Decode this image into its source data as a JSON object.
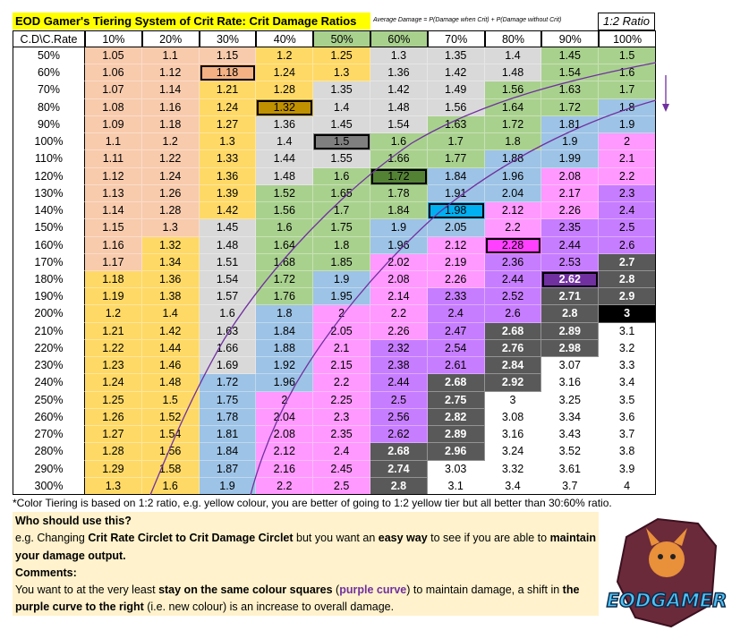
{
  "title": "EOD Gamer's Tiering System of Crit Rate: Crit Damage Ratios",
  "formula": "Average Damage = P(Damage when Crit) + P(Damage without Crit)",
  "ratio_label": "1:2 Ratio",
  "table": {
    "corner": "C.D\\C.Rate",
    "columns": [
      "10%",
      "20%",
      "30%",
      "40%",
      "50%",
      "60%",
      "70%",
      "80%",
      "90%",
      "100%"
    ],
    "column_colors": [
      "#ffffff",
      "#ffffff",
      "#ffffff",
      "#ffffff",
      "#a9d18e",
      "#a9d18e",
      "#ffffff",
      "#ffffff",
      "#ffffff",
      "#ffffff"
    ],
    "rows": [
      {
        "label": "50%",
        "cells": [
          "1.05",
          "1.1",
          "1.15",
          "1.2",
          "1.25",
          "1.3",
          "1.35",
          "1.4",
          "1.45",
          "1.5"
        ],
        "colors": [
          "#f8cbad",
          "#f8cbad",
          "#f8cbad",
          "#ffd966",
          "#ffd966",
          "#d9d9d9",
          "#d9d9d9",
          "#d9d9d9",
          "#a9d18e",
          "#a9d18e"
        ]
      },
      {
        "label": "60%",
        "cells": [
          "1.06",
          "1.12",
          "1.18",
          "1.24",
          "1.3",
          "1.36",
          "1.42",
          "1.48",
          "1.54",
          "1.6"
        ],
        "colors": [
          "#f8cbad",
          "#f8cbad",
          "#f4b183",
          "#ffd966",
          "#ffd966",
          "#d9d9d9",
          "#d9d9d9",
          "#d9d9d9",
          "#a9d18e",
          "#a9d18e"
        ]
      },
      {
        "label": "70%",
        "cells": [
          "1.07",
          "1.14",
          "1.21",
          "1.28",
          "1.35",
          "1.42",
          "1.49",
          "1.56",
          "1.63",
          "1.7"
        ],
        "colors": [
          "#f8cbad",
          "#f8cbad",
          "#ffd966",
          "#ffd966",
          "#d9d9d9",
          "#d9d9d9",
          "#d9d9d9",
          "#a9d18e",
          "#a9d18e",
          "#a9d18e"
        ]
      },
      {
        "label": "80%",
        "cells": [
          "1.08",
          "1.16",
          "1.24",
          "1.32",
          "1.4",
          "1.48",
          "1.56",
          "1.64",
          "1.72",
          "1.8"
        ],
        "colors": [
          "#f8cbad",
          "#f8cbad",
          "#ffd966",
          "#bf9000",
          "#d9d9d9",
          "#d9d9d9",
          "#d9d9d9",
          "#a9d18e",
          "#a9d18e",
          "#9dc3e6"
        ]
      },
      {
        "label": "90%",
        "cells": [
          "1.09",
          "1.18",
          "1.27",
          "1.36",
          "1.45",
          "1.54",
          "1.63",
          "1.72",
          "1.81",
          "1.9"
        ],
        "colors": [
          "#f8cbad",
          "#f8cbad",
          "#ffd966",
          "#d9d9d9",
          "#d9d9d9",
          "#d9d9d9",
          "#a9d18e",
          "#a9d18e",
          "#9dc3e6",
          "#9dc3e6"
        ]
      },
      {
        "label": "100%",
        "cells": [
          "1.1",
          "1.2",
          "1.3",
          "1.4",
          "1.5",
          "1.6",
          "1.7",
          "1.8",
          "1.9",
          "2"
        ],
        "colors": [
          "#f8cbad",
          "#f8cbad",
          "#ffd966",
          "#d9d9d9",
          "#7f7f7f",
          "#a9d18e",
          "#a9d18e",
          "#a9d18e",
          "#9dc3e6",
          "#ff99ff"
        ]
      },
      {
        "label": "110%",
        "cells": [
          "1.11",
          "1.22",
          "1.33",
          "1.44",
          "1.55",
          "1.66",
          "1.77",
          "1.88",
          "1.99",
          "2.1"
        ],
        "colors": [
          "#f8cbad",
          "#f8cbad",
          "#ffd966",
          "#d9d9d9",
          "#d9d9d9",
          "#a9d18e",
          "#a9d18e",
          "#9dc3e6",
          "#9dc3e6",
          "#ff99ff"
        ]
      },
      {
        "label": "120%",
        "cells": [
          "1.12",
          "1.24",
          "1.36",
          "1.48",
          "1.6",
          "1.72",
          "1.84",
          "1.96",
          "2.08",
          "2.2"
        ],
        "colors": [
          "#f8cbad",
          "#f8cbad",
          "#ffd966",
          "#d9d9d9",
          "#a9d18e",
          "#548235",
          "#9dc3e6",
          "#9dc3e6",
          "#ff99ff",
          "#ff99ff"
        ]
      },
      {
        "label": "130%",
        "cells": [
          "1.13",
          "1.26",
          "1.39",
          "1.52",
          "1.65",
          "1.78",
          "1.91",
          "2.04",
          "2.17",
          "2.3"
        ],
        "colors": [
          "#f8cbad",
          "#f8cbad",
          "#ffd966",
          "#a9d18e",
          "#a9d18e",
          "#a9d18e",
          "#9dc3e6",
          "#9dc3e6",
          "#ff99ff",
          "#c77dff"
        ]
      },
      {
        "label": "140%",
        "cells": [
          "1.14",
          "1.28",
          "1.42",
          "1.56",
          "1.7",
          "1.84",
          "1.98",
          "2.12",
          "2.26",
          "2.4"
        ],
        "colors": [
          "#f8cbad",
          "#f8cbad",
          "#ffd966",
          "#a9d18e",
          "#a9d18e",
          "#a9d18e",
          "#00b0f0",
          "#ff99ff",
          "#ff99ff",
          "#c77dff"
        ]
      },
      {
        "label": "150%",
        "cells": [
          "1.15",
          "1.3",
          "1.45",
          "1.6",
          "1.75",
          "1.9",
          "2.05",
          "2.2",
          "2.35",
          "2.5"
        ],
        "colors": [
          "#f8cbad",
          "#f8cbad",
          "#d9d9d9",
          "#a9d18e",
          "#a9d18e",
          "#9dc3e6",
          "#9dc3e6",
          "#ff99ff",
          "#c77dff",
          "#c77dff"
        ]
      },
      {
        "label": "160%",
        "cells": [
          "1.16",
          "1.32",
          "1.48",
          "1.64",
          "1.8",
          "1.96",
          "2.12",
          "2.28",
          "2.44",
          "2.6"
        ],
        "colors": [
          "#f8cbad",
          "#ffd966",
          "#d9d9d9",
          "#a9d18e",
          "#a9d18e",
          "#9dc3e6",
          "#ff99ff",
          "#ff40ff",
          "#c77dff",
          "#c77dff"
        ]
      },
      {
        "label": "170%",
        "cells": [
          "1.17",
          "1.34",
          "1.51",
          "1.68",
          "1.85",
          "2.02",
          "2.19",
          "2.36",
          "2.53",
          "2.7"
        ],
        "colors": [
          "#f8cbad",
          "#ffd966",
          "#d9d9d9",
          "#a9d18e",
          "#a9d18e",
          "#ff99ff",
          "#ff99ff",
          "#c77dff",
          "#c77dff",
          "#595959"
        ]
      },
      {
        "label": "180%",
        "cells": [
          "1.18",
          "1.36",
          "1.54",
          "1.72",
          "1.9",
          "2.08",
          "2.26",
          "2.44",
          "2.62",
          "2.8"
        ],
        "colors": [
          "#ffd966",
          "#ffd966",
          "#d9d9d9",
          "#a9d18e",
          "#9dc3e6",
          "#ff99ff",
          "#ff99ff",
          "#c77dff",
          "#7030a0",
          "#595959"
        ]
      },
      {
        "label": "190%",
        "cells": [
          "1.19",
          "1.38",
          "1.57",
          "1.76",
          "1.95",
          "2.14",
          "2.33",
          "2.52",
          "2.71",
          "2.9"
        ],
        "colors": [
          "#ffd966",
          "#ffd966",
          "#d9d9d9",
          "#a9d18e",
          "#9dc3e6",
          "#ff99ff",
          "#c77dff",
          "#c77dff",
          "#595959",
          "#595959"
        ]
      },
      {
        "label": "200%",
        "cells": [
          "1.2",
          "1.4",
          "1.6",
          "1.8",
          "2",
          "2.2",
          "2.4",
          "2.6",
          "2.8",
          "3"
        ],
        "colors": [
          "#ffd966",
          "#ffd966",
          "#d9d9d9",
          "#9dc3e6",
          "#ff99ff",
          "#ff99ff",
          "#c77dff",
          "#c77dff",
          "#595959",
          "#000000"
        ]
      },
      {
        "label": "210%",
        "cells": [
          "1.21",
          "1.42",
          "1.63",
          "1.84",
          "2.05",
          "2.26",
          "2.47",
          "2.68",
          "2.89",
          "3.1"
        ],
        "colors": [
          "#ffd966",
          "#ffd966",
          "#d9d9d9",
          "#9dc3e6",
          "#ff99ff",
          "#ff99ff",
          "#c77dff",
          "#595959",
          "#595959",
          "#ffffff"
        ]
      },
      {
        "label": "220%",
        "cells": [
          "1.22",
          "1.44",
          "1.66",
          "1.88",
          "2.1",
          "2.32",
          "2.54",
          "2.76",
          "2.98",
          "3.2"
        ],
        "colors": [
          "#ffd966",
          "#ffd966",
          "#d9d9d9",
          "#9dc3e6",
          "#ff99ff",
          "#c77dff",
          "#c77dff",
          "#595959",
          "#595959",
          "#ffffff"
        ]
      },
      {
        "label": "230%",
        "cells": [
          "1.23",
          "1.46",
          "1.69",
          "1.92",
          "2.15",
          "2.38",
          "2.61",
          "2.84",
          "3.07",
          "3.3"
        ],
        "colors": [
          "#ffd966",
          "#ffd966",
          "#d9d9d9",
          "#9dc3e6",
          "#ff99ff",
          "#c77dff",
          "#c77dff",
          "#595959",
          "#ffffff",
          "#ffffff"
        ]
      },
      {
        "label": "240%",
        "cells": [
          "1.24",
          "1.48",
          "1.72",
          "1.96",
          "2.2",
          "2.44",
          "2.68",
          "2.92",
          "3.16",
          "3.4"
        ],
        "colors": [
          "#ffd966",
          "#ffd966",
          "#9dc3e6",
          "#9dc3e6",
          "#ff99ff",
          "#c77dff",
          "#595959",
          "#595959",
          "#ffffff",
          "#ffffff"
        ]
      },
      {
        "label": "250%",
        "cells": [
          "1.25",
          "1.5",
          "1.75",
          "2",
          "2.25",
          "2.5",
          "2.75",
          "3",
          "3.25",
          "3.5"
        ],
        "colors": [
          "#ffd966",
          "#ffd966",
          "#9dc3e6",
          "#ff99ff",
          "#ff99ff",
          "#c77dff",
          "#595959",
          "#ffffff",
          "#ffffff",
          "#ffffff"
        ]
      },
      {
        "label": "260%",
        "cells": [
          "1.26",
          "1.52",
          "1.78",
          "2.04",
          "2.3",
          "2.56",
          "2.82",
          "3.08",
          "3.34",
          "3.6"
        ],
        "colors": [
          "#ffd966",
          "#ffd966",
          "#9dc3e6",
          "#ff99ff",
          "#ff99ff",
          "#c77dff",
          "#595959",
          "#ffffff",
          "#ffffff",
          "#ffffff"
        ]
      },
      {
        "label": "270%",
        "cells": [
          "1.27",
          "1.54",
          "1.81",
          "2.08",
          "2.35",
          "2.62",
          "2.89",
          "3.16",
          "3.43",
          "3.7"
        ],
        "colors": [
          "#ffd966",
          "#ffd966",
          "#9dc3e6",
          "#ff99ff",
          "#ff99ff",
          "#c77dff",
          "#595959",
          "#ffffff",
          "#ffffff",
          "#ffffff"
        ]
      },
      {
        "label": "280%",
        "cells": [
          "1.28",
          "1.56",
          "1.84",
          "2.12",
          "2.4",
          "2.68",
          "2.96",
          "3.24",
          "3.52",
          "3.8"
        ],
        "colors": [
          "#ffd966",
          "#ffd966",
          "#9dc3e6",
          "#ff99ff",
          "#ff99ff",
          "#595959",
          "#595959",
          "#ffffff",
          "#ffffff",
          "#ffffff"
        ]
      },
      {
        "label": "290%",
        "cells": [
          "1.29",
          "1.58",
          "1.87",
          "2.16",
          "2.45",
          "2.74",
          "3.03",
          "3.32",
          "3.61",
          "3.9"
        ],
        "colors": [
          "#ffd966",
          "#ffd966",
          "#9dc3e6",
          "#ff99ff",
          "#ff99ff",
          "#595959",
          "#ffffff",
          "#ffffff",
          "#ffffff",
          "#ffffff"
        ]
      },
      {
        "label": "300%",
        "cells": [
          "1.3",
          "1.6",
          "1.9",
          "2.2",
          "2.5",
          "2.8",
          "3.1",
          "3.4",
          "3.7",
          "4"
        ],
        "colors": [
          "#ffd966",
          "#ffd966",
          "#9dc3e6",
          "#ff99ff",
          "#ff99ff",
          "#595959",
          "#ffffff",
          "#ffffff",
          "#ffffff",
          "#ffffff"
        ]
      }
    ],
    "outlined_cells": [
      [
        1,
        2
      ],
      [
        3,
        3
      ],
      [
        5,
        4
      ],
      [
        7,
        5
      ],
      [
        9,
        6
      ],
      [
        11,
        7
      ],
      [
        13,
        8
      ],
      [
        15,
        9
      ]
    ]
  },
  "footnote": "*Color Tiering is based on 1:2 ratio, e.g. yellow colour, you are better of going to 1:2 yellow tier but all better than 30:60% ratio.",
  "notes": [
    [
      {
        "text": "Who should use this?",
        "bold": true
      }
    ],
    [
      {
        "text": "e.g. Changing "
      },
      {
        "text": "Crit Rate Circlet to Crit Damage Circlet",
        "bold": true
      },
      {
        "text": " but you want an "
      },
      {
        "text": "easy way",
        "bold": true
      },
      {
        "text": " to see if you are able to "
      },
      {
        "text": "maintain your damage output.",
        "bold": true
      }
    ],
    [
      {
        "text": "Comments:",
        "bold": true
      }
    ],
    [
      {
        "text": "You want to at the very least "
      },
      {
        "text": "stay on the same colour squares",
        "bold": true
      },
      {
        "text": " ("
      },
      {
        "text": "purple curve",
        "bold": true,
        "color": "#7030a0"
      },
      {
        "text": ") to maintain damage, a shift in "
      },
      {
        "text": "the purple curve to the right",
        "bold": true
      },
      {
        "text": " (i.e. new colour) is an increase to overall damage."
      }
    ]
  ],
  "logo": {
    "text": "EODGAMER"
  }
}
